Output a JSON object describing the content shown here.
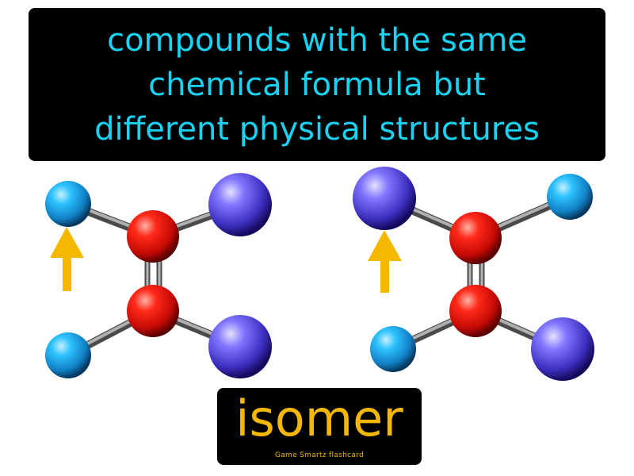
{
  "definition": {
    "lines": [
      "compounds with the same",
      "chemical formula but",
      "different physical structures"
    ]
  },
  "term": {
    "word": "isomer",
    "credit": "Game Smartz flashcard"
  },
  "colors": {
    "text_cyan": "#19d3f4",
    "text_gold": "#f5b800",
    "atom_red": "#e0100c",
    "atom_blue": "#1fa7e6",
    "atom_purple": "#6b5fe0",
    "arrow_gold": "#f5b800",
    "bond_gray": "#8c8c8c"
  },
  "molecules": [
    {
      "name": "left-isomer"
    },
    {
      "name": "right-isomer"
    }
  ]
}
